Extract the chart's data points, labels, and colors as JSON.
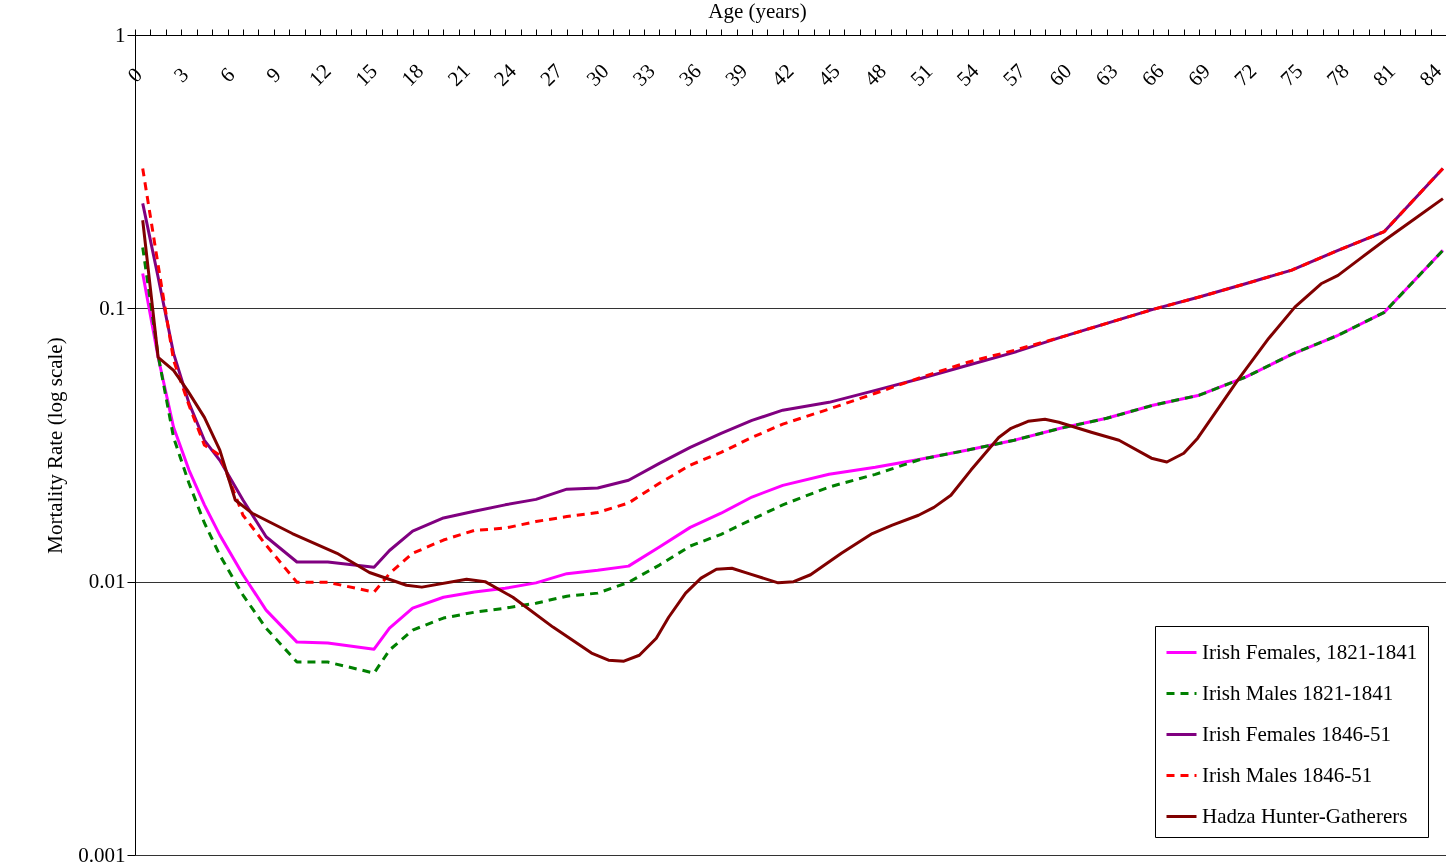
{
  "chart_data": {
    "type": "line",
    "xlabel": "Age (years)",
    "ylabel": "Mortality Rate (log scale)",
    "log": "y",
    "grid": "y",
    "legend": "bottom right",
    "xlim": [
      0,
      85
    ],
    "ylim": [
      0.001,
      1
    ],
    "yticks": [
      0.001,
      0.01,
      0.1,
      1
    ],
    "xticks": [
      0,
      {
        "value": 1,
        "label": null
      },
      {
        "value": 2,
        "label": null
      },
      3,
      {
        "value": 4,
        "label": null
      },
      {
        "value": 5,
        "label": null
      },
      6,
      {
        "value": 7,
        "label": null
      },
      {
        "value": 8,
        "label": null
      },
      9,
      {
        "value": 10,
        "label": null
      },
      {
        "value": 11,
        "label": null
      },
      12,
      {
        "value": 13,
        "label": null
      },
      {
        "value": 14,
        "label": null
      },
      15,
      {
        "value": 16,
        "label": null
      },
      {
        "value": 17,
        "label": null
      },
      18,
      {
        "value": 19,
        "label": null
      },
      {
        "value": 20,
        "label": null
      },
      21,
      {
        "value": 22,
        "label": null
      },
      {
        "value": 23,
        "label": null
      },
      24,
      {
        "value": 25,
        "label": null
      },
      {
        "value": 26,
        "label": null
      },
      27,
      {
        "value": 28,
        "label": null
      },
      {
        "value": 29,
        "label": null
      },
      30,
      {
        "value": 31,
        "label": null
      },
      {
        "value": 32,
        "label": null
      },
      33,
      {
        "value": 34,
        "label": null
      },
      {
        "value": 35,
        "label": null
      },
      36,
      {
        "value": 37,
        "label": null
      },
      {
        "value": 38,
        "label": null
      },
      39,
      {
        "value": 40,
        "label": null
      },
      {
        "value": 41,
        "label": null
      },
      42,
      {
        "value": 43,
        "label": null
      },
      {
        "value": 44,
        "label": null
      },
      45,
      {
        "value": 46,
        "label": null
      },
      {
        "value": 47,
        "label": null
      },
      48,
      {
        "value": 49,
        "label": null
      },
      {
        "value": 50,
        "label": null
      },
      51,
      {
        "value": 52,
        "label": null
      },
      {
        "value": 53,
        "label": null
      },
      54,
      {
        "value": 55,
        "label": null
      },
      {
        "value": 56,
        "label": null
      },
      57,
      {
        "value": 58,
        "label": null
      },
      {
        "value": 59,
        "label": null
      },
      60,
      {
        "value": 61,
        "label": null
      },
      {
        "value": 62,
        "label": null
      },
      63,
      {
        "value": 64,
        "label": null
      },
      {
        "value": 65,
        "label": null
      },
      66,
      {
        "value": 67,
        "label": null
      },
      {
        "value": 68,
        "label": null
      },
      69,
      {
        "value": 70,
        "label": null
      },
      {
        "value": 71,
        "label": null
      },
      72,
      {
        "value": 73,
        "label": null
      },
      {
        "value": 74,
        "label": null
      },
      75,
      {
        "value": 76,
        "label": null
      },
      {
        "value": 77,
        "label": null
      },
      78,
      {
        "value": 79,
        "label": null
      },
      {
        "value": 80,
        "label": null
      },
      81,
      {
        "value": 82,
        "label": null
      },
      {
        "value": 83,
        "label": null
      },
      84,
      {
        "value": 85,
        "label": null
      }
    ],
    "x": [
      0.5,
      1.5,
      2.5,
      3.5,
      4.5,
      5.5,
      7,
      8.5,
      10.5,
      12.5,
      15.5,
      16.5,
      18,
      20,
      22,
      24,
      26,
      28,
      30,
      32,
      34,
      36,
      38,
      40,
      42,
      45,
      48,
      51,
      54,
      57,
      60,
      63,
      66,
      69,
      72,
      75,
      78,
      81,
      84.8
    ],
    "series": [
      {
        "name": "Irish Females, 1821-1841",
        "color": "#ff00ff",
        "line_style": "solid",
        "values": [
          0.134,
          0.0662,
          0.0367,
          0.0256,
          0.0191,
          0.0148,
          0.0106,
          0.00787,
          0.00601,
          0.00596,
          0.00566,
          0.00676,
          0.008,
          0.00877,
          0.00916,
          0.00946,
          0.0099,
          0.0107,
          0.011,
          0.0114,
          0.0134,
          0.0158,
          0.0178,
          0.0204,
          0.0225,
          0.0247,
          0.0262,
          0.0281,
          0.0303,
          0.0329,
          0.0364,
          0.0396,
          0.0442,
          0.0481,
          0.056,
          0.0679,
          0.0797,
          0.0967,
          0.163
        ]
      },
      {
        "name": "Irish Males 1821-1841",
        "color": "#008000",
        "line_style": "dashed",
        "values": [
          0.167,
          0.0673,
          0.0337,
          0.0229,
          0.0164,
          0.0125,
          0.00893,
          0.00676,
          0.00508,
          0.00508,
          0.00463,
          0.00562,
          0.00665,
          0.00736,
          0.00773,
          0.008,
          0.00834,
          0.00885,
          0.00908,
          0.00995,
          0.0115,
          0.0135,
          0.0149,
          0.0169,
          0.0191,
          0.0222,
          0.0247,
          0.0281,
          0.0303,
          0.0329,
          0.0364,
          0.0396,
          0.0442,
          0.0481,
          0.056,
          0.0679,
          0.0797,
          0.0967,
          0.163
        ]
      },
      {
        "name": "Irish Females 1846-51",
        "color": "#800080",
        "line_style": "solid",
        "values": [
          0.242,
          0.13,
          0.0684,
          0.045,
          0.0329,
          0.0278,
          0.0199,
          0.0146,
          0.0118,
          0.0118,
          0.0113,
          0.013,
          0.0153,
          0.0171,
          0.0181,
          0.0191,
          0.02,
          0.0218,
          0.022,
          0.0235,
          0.0271,
          0.031,
          0.0349,
          0.0389,
          0.0424,
          0.0453,
          0.0501,
          0.0555,
          0.0619,
          0.069,
          0.0783,
          0.0881,
          0.0991,
          0.11,
          0.123,
          0.138,
          0.163,
          0.191,
          0.325
        ]
      },
      {
        "name": "Irish Males 1846-51",
        "color": "#ff0000",
        "line_style": "dashed",
        "values": [
          0.325,
          0.144,
          0.0646,
          0.0442,
          0.0316,
          0.029,
          0.0175,
          0.0136,
          0.00995,
          0.00995,
          0.00916,
          0.0107,
          0.0127,
          0.0142,
          0.0154,
          0.0157,
          0.0166,
          0.0173,
          0.0179,
          0.0194,
          0.0229,
          0.0267,
          0.0297,
          0.0337,
          0.0377,
          0.0428,
          0.0489,
          0.056,
          0.0635,
          0.0702,
          0.0783,
          0.0881,
          0.0991,
          0.11,
          0.123,
          0.138,
          0.163,
          0.191,
          0.325
        ]
      },
      {
        "name": "Hadza Hunter-Gatherers",
        "color": "#800000",
        "line_style": "solid",
        "x": [
          0.5,
          1.5,
          2.5,
          3.4,
          4.5,
          5.5,
          6.5,
          7.6,
          10.2,
          13.1,
          15.2,
          17.6,
          18.6,
          21.5,
          22.7,
          24.5,
          27.1,
          29.6,
          30.7,
          31.7,
          32.7,
          33.8,
          34.6,
          35.7,
          36.7,
          37.7,
          38.7,
          39.8,
          41.7,
          42.7,
          43.8,
          45.8,
          47.8,
          49.1,
          50.8,
          51.8,
          52.9,
          54.2,
          56.0,
          56.8,
          57.9,
          59.0,
          59.9,
          62.0,
          63.8,
          65.9,
          66.9,
          68.0,
          68.9,
          71.5,
          73.5,
          75.2,
          76.9,
          78.0,
          79.5,
          81.0,
          83.0,
          84.8
        ],
        "values": [
          0.21,
          0.0662,
          0.0593,
          0.0501,
          0.0399,
          0.0303,
          0.0199,
          0.0178,
          0.015,
          0.0127,
          0.0108,
          0.0097,
          0.00955,
          0.0102,
          0.01,
          0.00877,
          0.00682,
          0.00548,
          0.00516,
          0.00512,
          0.00538,
          0.00621,
          0.00741,
          0.00908,
          0.0103,
          0.0111,
          0.0112,
          0.0107,
          0.0099,
          0.01,
          0.0106,
          0.0127,
          0.015,
          0.0161,
          0.0175,
          0.0187,
          0.0207,
          0.0256,
          0.0337,
          0.0364,
          0.0386,
          0.0393,
          0.0383,
          0.0352,
          0.0329,
          0.0283,
          0.0274,
          0.0295,
          0.0335,
          0.0546,
          0.0776,
          0.101,
          0.123,
          0.132,
          0.153,
          0.177,
          0.213,
          0.252
        ]
      }
    ]
  }
}
